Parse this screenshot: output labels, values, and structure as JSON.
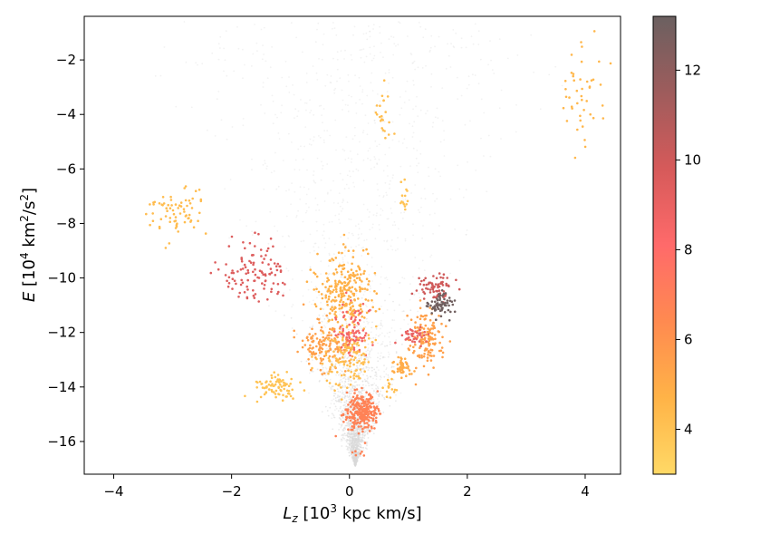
{
  "chart_data": {
    "type": "scatter",
    "title": "",
    "xlabel": {
      "sym": "L",
      "sub": "z",
      "pre": " [10",
      "exp": "3",
      "post": " kpc km/s]"
    },
    "ylabel": {
      "sym": "E",
      "pre": " [10",
      "exp": "4",
      "mid": " km",
      "exp2": "2",
      "post": "/s",
      "exp3": "2",
      "post2": "]"
    },
    "xlim": [
      -4.5,
      4.6
    ],
    "ylim": [
      -17.2,
      -0.4
    ],
    "xticks": [
      -4,
      -2,
      0,
      2,
      4
    ],
    "xtick_labels": [
      "−4",
      "−2",
      "0",
      "2",
      "4"
    ],
    "yticks": [
      -16,
      -14,
      -12,
      -10,
      -8,
      -6,
      -4,
      -2
    ],
    "ytick_labels": [
      "−16",
      "−14",
      "−12",
      "−10",
      "−8",
      "−6",
      "−4",
      "−2"
    ],
    "grid": false,
    "colorbar": {
      "range": [
        3,
        13.2
      ],
      "ticks": [
        4,
        6,
        8,
        10,
        12
      ],
      "tick_labels": [
        "4",
        "6",
        "8",
        "10",
        "12"
      ],
      "colors": [
        "#ffd966",
        "#ffb347",
        "#ff8a50",
        "#ff6a6a",
        "#d65a5a",
        "#9e5c5c",
        "#6b6060"
      ]
    },
    "background": {
      "name": "field stars (grey)",
      "color": "#d9d9d9",
      "apex_x": 0.1,
      "apex_y": -16.9,
      "top_y": -0.6,
      "left_x_at_top": -3.7,
      "right_x_at_top": 4.0
    },
    "groups": [
      {
        "cx": 0.2,
        "cy": -14.9,
        "sx": 0.14,
        "sy": 0.35,
        "n": 260,
        "c": 6.8
      },
      {
        "cx": 0.15,
        "cy": -16.45,
        "sx": 0.05,
        "sy": 0.05,
        "n": 6,
        "c": 6.8
      },
      {
        "cx": -0.05,
        "cy": -10.6,
        "sx": 0.22,
        "sy": 0.75,
        "n": 260,
        "c": 4.8
      },
      {
        "cx": -0.4,
        "cy": -12.5,
        "sx": 0.25,
        "sy": 0.45,
        "n": 140,
        "c": 5.5
      },
      {
        "cx": 0.05,
        "cy": -12.0,
        "sx": 0.15,
        "sy": 0.5,
        "n": 90,
        "c": 8.5
      },
      {
        "cx": -0.05,
        "cy": -12.9,
        "sx": 0.2,
        "sy": 0.5,
        "n": 120,
        "c": 4.2
      },
      {
        "cx": -1.25,
        "cy": -14.0,
        "sx": 0.2,
        "sy": 0.22,
        "n": 80,
        "c": 4.0
      },
      {
        "cx": -1.6,
        "cy": -9.8,
        "sx": 0.28,
        "sy": 0.55,
        "n": 110,
        "c": 9.5
      },
      {
        "cx": -2.9,
        "cy": -7.6,
        "sx": 0.22,
        "sy": 0.45,
        "n": 70,
        "c": 4.3
      },
      {
        "cx": 3.95,
        "cy": -3.1,
        "sx": 0.25,
        "sy": 1.1,
        "n": 45,
        "c": 4.5
      },
      {
        "cx": 0.6,
        "cy": -4.0,
        "sx": 0.08,
        "sy": 0.6,
        "n": 22,
        "c": 4.2
      },
      {
        "cx": 0.9,
        "cy": -7.0,
        "sx": 0.06,
        "sy": 0.25,
        "n": 14,
        "c": 4.0
      },
      {
        "cx": 1.3,
        "cy": -12.2,
        "sx": 0.15,
        "sy": 0.55,
        "n": 140,
        "c": 5.5
      },
      {
        "cx": 1.45,
        "cy": -10.3,
        "sx": 0.15,
        "sy": 0.25,
        "n": 70,
        "c": 10.0
      },
      {
        "cx": 1.55,
        "cy": -11.0,
        "sx": 0.1,
        "sy": 0.2,
        "n": 70,
        "c": 13.0
      },
      {
        "cx": 1.1,
        "cy": -12.1,
        "sx": 0.1,
        "sy": 0.15,
        "n": 40,
        "c": 9.0
      },
      {
        "cx": 0.9,
        "cy": -13.3,
        "sx": 0.08,
        "sy": 0.15,
        "n": 50,
        "c": 5.0
      },
      {
        "cx": 0.7,
        "cy": -14.1,
        "sx": 0.05,
        "sy": 0.2,
        "n": 15,
        "c": 4.2
      }
    ]
  }
}
